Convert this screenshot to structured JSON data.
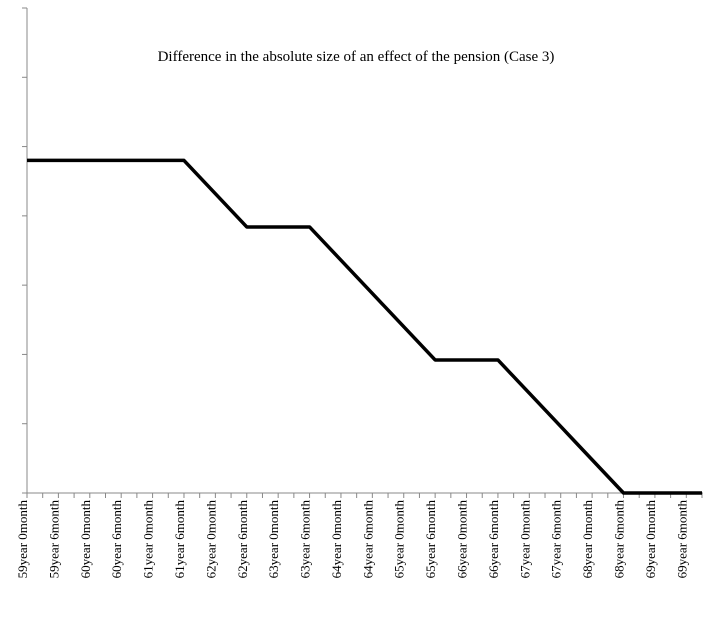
{
  "chart_data": {
    "type": "line",
    "title": "Difference in the absolute size of an effect of the pension (Case 3)",
    "categories": [
      "59year 0month",
      null,
      "59year 6month",
      null,
      "60year 0month",
      null,
      "60year 6month",
      null,
      "61year 0month",
      null,
      "61year 6month",
      null,
      "62year 0month",
      null,
      "62year 6month",
      null,
      "63year 0month",
      null,
      "63year 6month",
      null,
      "64year 0month",
      null,
      "64year 6month",
      null,
      "65year 0month",
      null,
      "65year 6month",
      null,
      "66year 0month",
      null,
      "66year 6month",
      null,
      "67year 0month",
      null,
      "67year 6month",
      null,
      "68year 0month",
      null,
      "68year 6month",
      null,
      "69year 0month",
      null,
      "69year 6month",
      null
    ],
    "values": [
      4.8,
      4.8,
      4.8,
      4.8,
      4.8,
      4.8,
      4.8,
      4.8,
      4.8,
      4.8,
      4.8,
      4.56,
      4.32,
      4.08,
      3.84,
      3.84,
      3.84,
      3.84,
      3.84,
      3.6,
      3.36,
      3.12,
      2.88,
      2.64,
      2.4,
      2.16,
      1.92,
      1.92,
      1.92,
      1.92,
      1.92,
      1.68,
      1.44,
      1.2,
      0.96,
      0.72,
      0.48,
      0.24,
      0,
      0,
      0,
      0,
      0,
      0
    ],
    "color": "#000000",
    "ylim": [
      0,
      7
    ],
    "yticks": [
      0,
      1,
      2,
      3,
      4,
      5,
      6,
      7
    ]
  }
}
